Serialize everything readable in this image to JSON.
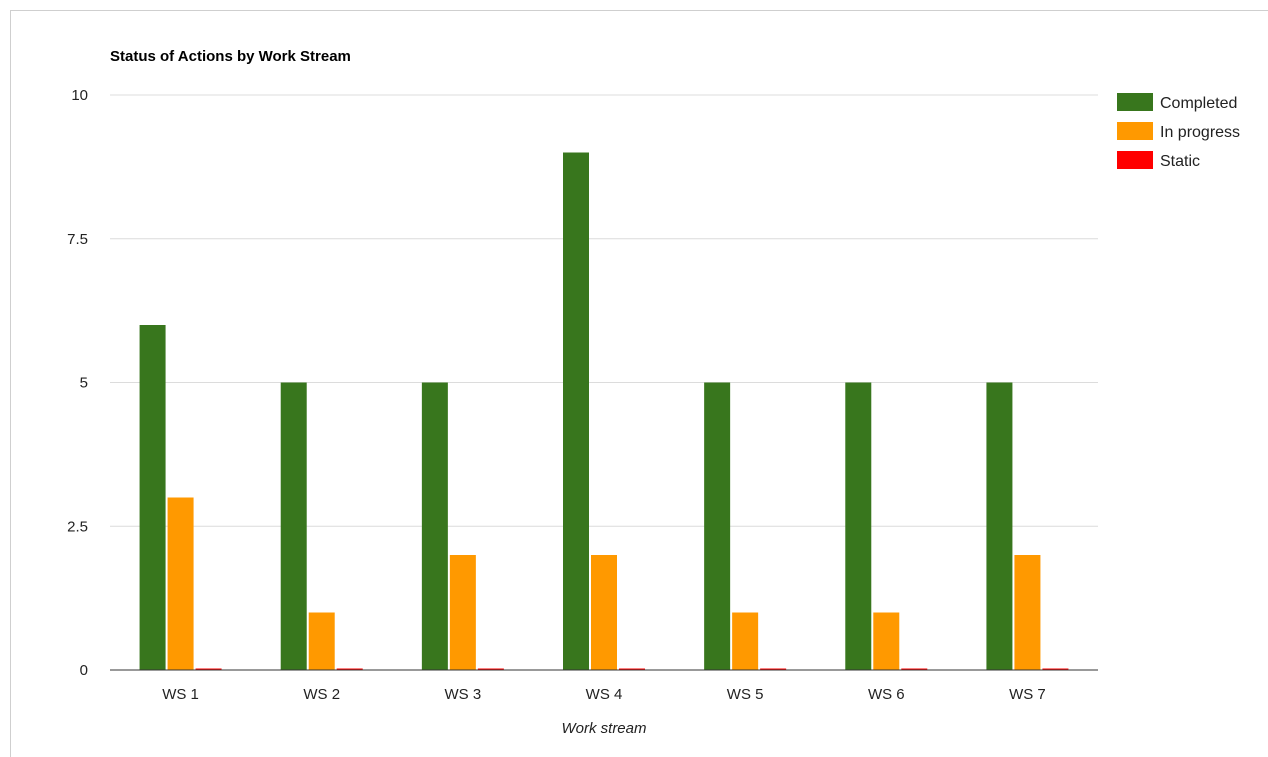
{
  "chart_data": {
    "type": "bar",
    "title": "Status of Actions by Work Stream",
    "xlabel": "Work stream",
    "ylabel": "",
    "ylim": [
      0,
      10
    ],
    "yticks": [
      "0",
      "2.5",
      "5",
      "7.5",
      "10"
    ],
    "yticks_values": [
      0,
      2.5,
      5,
      7.5,
      10
    ],
    "grid": true,
    "legend_position": "right",
    "categories": [
      "WS 1",
      "WS 2",
      "WS 3",
      "WS 4",
      "WS 5",
      "WS 6",
      "WS 7"
    ],
    "series": [
      {
        "name": "Completed",
        "color": "#38761d",
        "values": [
          6,
          5,
          5,
          9,
          5,
          5,
          5
        ]
      },
      {
        "name": "In progress",
        "color": "#ff9900",
        "values": [
          3,
          1,
          2,
          2,
          1,
          1,
          2
        ]
      },
      {
        "name": "Static",
        "color": "#ff0000",
        "values": [
          0,
          0,
          0,
          0,
          0,
          0,
          0
        ]
      }
    ]
  }
}
